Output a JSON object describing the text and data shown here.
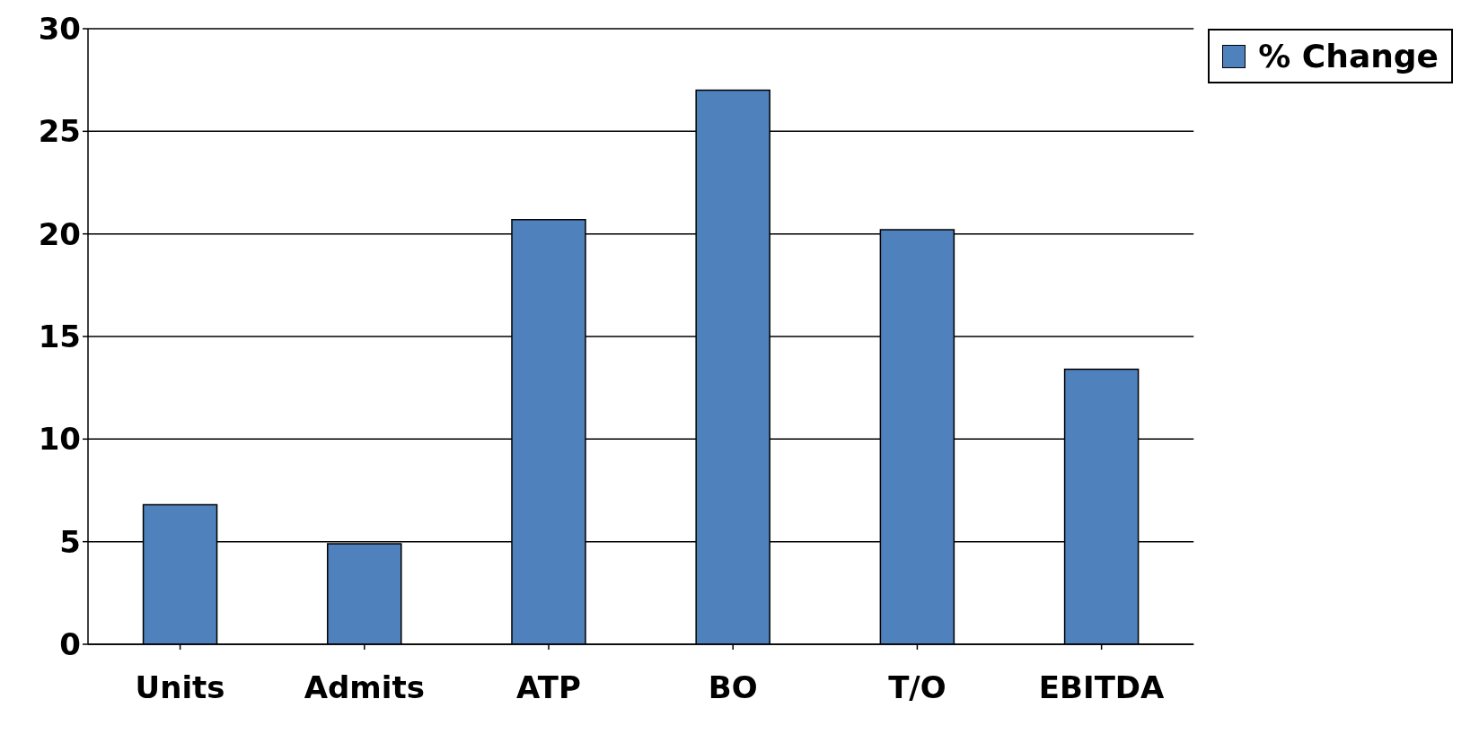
{
  "chart_data": {
    "type": "bar",
    "categories": [
      "Units",
      "Admits",
      "ATP",
      "BO",
      "T/O",
      "EBITDA"
    ],
    "series": [
      {
        "name": "% Change",
        "color": "#4f81bd",
        "values": [
          6.8,
          4.9,
          20.7,
          27,
          20.2,
          13.4
        ]
      }
    ],
    "ylim": [
      0,
      30
    ],
    "yticks": [
      0,
      5,
      10,
      15,
      20,
      25,
      30
    ],
    "grid": "y",
    "legend": "top right"
  }
}
